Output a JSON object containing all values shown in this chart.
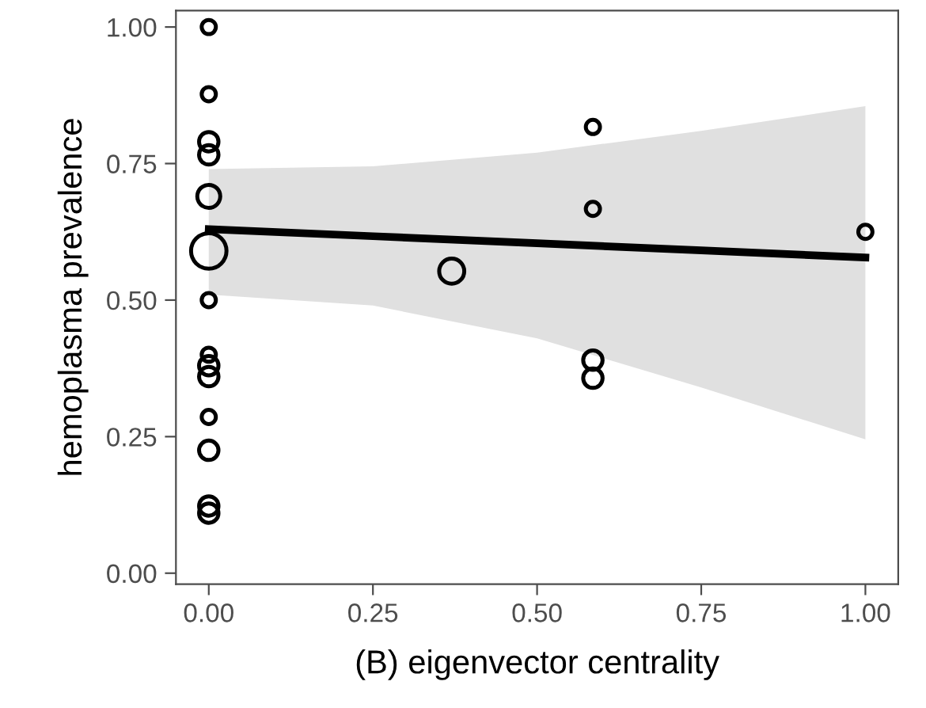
{
  "chart_data": {
    "type": "bubble",
    "xlabel": "(B) eigenvector centrality",
    "ylabel": "hemoplasma prevalence",
    "xlim": [
      -0.05,
      1.05
    ],
    "ylim": [
      -0.02,
      1.03
    ],
    "xticks": [
      {
        "value": 0,
        "label": "0.00"
      },
      {
        "value": 0.25,
        "label": "0.25"
      },
      {
        "value": 0.5,
        "label": "0.50"
      },
      {
        "value": 0.75,
        "label": "0.75"
      },
      {
        "value": 1,
        "label": "1.00"
      }
    ],
    "yticks": [
      {
        "value": 0,
        "label": "0.00"
      },
      {
        "value": 0.25,
        "label": "0.25"
      },
      {
        "value": 0.5,
        "label": "0.50"
      },
      {
        "value": 0.75,
        "label": "0.75"
      },
      {
        "value": 1,
        "label": "1.00"
      }
    ],
    "grid": false,
    "series": [
      {
        "type": "line",
        "color": "#000000",
        "line_style": "solid",
        "marker": "none",
        "x": [
          0,
          0.25,
          0.5,
          0.75,
          1
        ],
        "values": [
          0.63,
          0.617,
          0.604,
          0.591,
          0.578
        ],
        "lower": [
          0.51,
          0.49,
          0.43,
          0.34,
          0.245
        ],
        "upper": [
          0.74,
          0.745,
          0.77,
          0.81,
          0.855
        ]
      },
      {
        "color": "#000000",
        "marker": "circle",
        "x": [
          0,
          0,
          0,
          0,
          0,
          0,
          0,
          0,
          0,
          0,
          0,
          0,
          0,
          0,
          0.37,
          0.585,
          0.585,
          0.585,
          0.585,
          1
        ],
        "values": [
          1.0,
          0.877,
          0.79,
          0.766,
          0.69,
          0.59,
          0.5,
          0.4,
          0.38,
          0.36,
          0.286,
          0.225,
          0.123,
          0.11,
          0.553,
          0.817,
          0.667,
          0.39,
          0.357,
          0.625
        ],
        "sizes": [
          0.16,
          0.16,
          0.3,
          0.3,
          0.42,
          1,
          0.16,
          0.16,
          0.3,
          0.3,
          0.16,
          0.3,
          0.3,
          0.3,
          0.5,
          0.16,
          0.16,
          0.3,
          0.3,
          0.16
        ]
      }
    ]
  }
}
